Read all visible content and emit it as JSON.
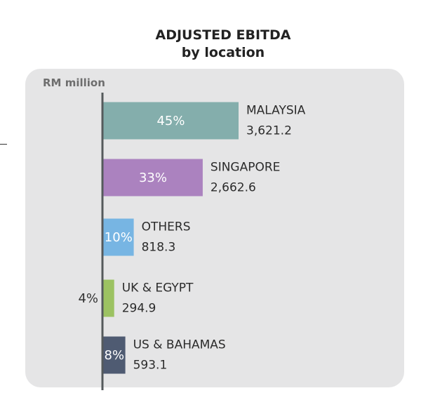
{
  "chart_data": {
    "type": "bar",
    "orientation": "horizontal",
    "title": "ADJUSTED EBITDA",
    "subtitle": "by location",
    "unit_label": "RM million",
    "xlim": [
      0,
      3621.2
    ],
    "categories": [
      "MALAYSIA",
      "SINGAPORE",
      "OTHERS",
      "UK & EGYPT",
      "US & BAHAMAS"
    ],
    "values": [
      3621.2,
      2662.6,
      818.3,
      294.9,
      593.1
    ],
    "value_labels": [
      "3,621.2",
      "2,662.6",
      "818.3",
      "294.9",
      "593.1"
    ],
    "percent_labels": [
      "45%",
      "33%",
      "10%",
      "4%",
      "8%"
    ],
    "colors": [
      "#84aeac",
      "#ab82bf",
      "#77b5e3",
      "#9cc262",
      "#4f5b72"
    ]
  }
}
